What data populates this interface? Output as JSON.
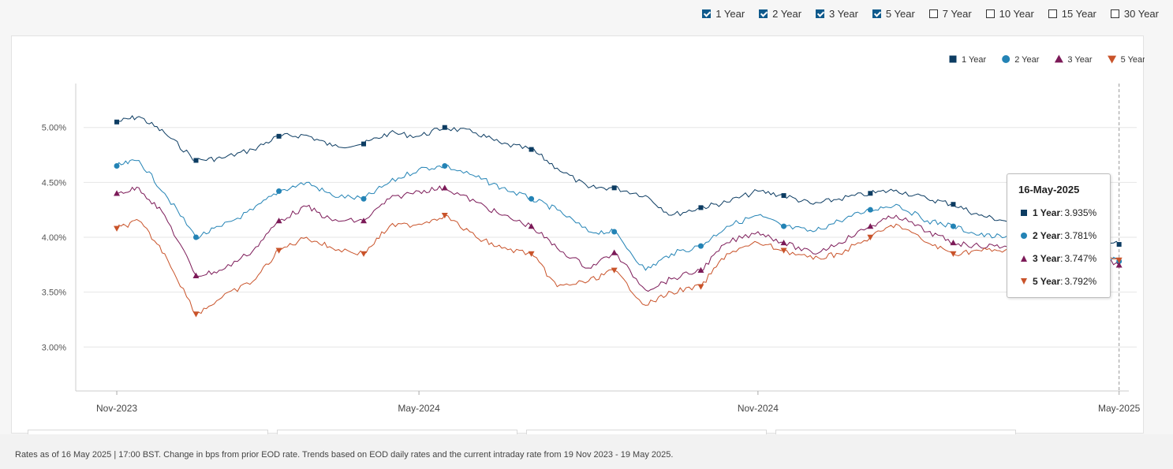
{
  "terms": [
    {
      "label": "1 Year",
      "checked": true
    },
    {
      "label": "2 Year",
      "checked": true
    },
    {
      "label": "3 Year",
      "checked": true
    },
    {
      "label": "5 Year",
      "checked": true
    },
    {
      "label": "7 Year",
      "checked": false
    },
    {
      "label": "10 Year",
      "checked": false
    },
    {
      "label": "15 Year",
      "checked": false
    },
    {
      "label": "30 Year",
      "checked": false
    }
  ],
  "tooltip": {
    "date": "16-May-2025",
    "rows": [
      {
        "name": "1 Year",
        "value": "3.935%"
      },
      {
        "name": "2 Year",
        "value": "3.781%"
      },
      {
        "name": "3 Year",
        "value": "3.747%"
      },
      {
        "name": "5 Year",
        "value": "3.792%"
      }
    ]
  },
  "footnote": "Rates as of 16 May 2025 | 17:00 BST. Change in bps from prior EOD rate. Trends based on EOD daily rates and the current intraday rate from 19 Nov 2023 - 19 May 2025.",
  "chart_data": {
    "type": "line",
    "x_ticks": [
      "Nov-2023",
      "May-2024",
      "Nov-2024",
      "May-2025"
    ],
    "y_ticks": [
      "3.00%",
      "3.50%",
      "4.00%",
      "4.50%",
      "5.00%"
    ],
    "ylim": [
      2.6,
      5.4
    ],
    "grid": true,
    "legend_position": "top-right",
    "x": [
      "2023-11-19",
      "2023-12-01",
      "2023-12-15",
      "2024-01-01",
      "2024-01-15",
      "2024-02-01",
      "2024-02-15",
      "2024-03-01",
      "2024-03-15",
      "2024-04-01",
      "2024-04-15",
      "2024-05-01",
      "2024-05-15",
      "2024-06-01",
      "2024-06-15",
      "2024-07-01",
      "2024-07-15",
      "2024-08-01",
      "2024-08-15",
      "2024-09-01",
      "2024-09-15",
      "2024-10-01",
      "2024-10-15",
      "2024-11-01",
      "2024-11-15",
      "2024-12-01",
      "2024-12-15",
      "2025-01-01",
      "2025-01-15",
      "2025-02-01",
      "2025-02-15",
      "2025-03-01",
      "2025-03-15",
      "2025-04-01",
      "2025-04-15",
      "2025-05-01",
      "2025-05-16"
    ],
    "series": [
      {
        "name": "1 Year",
        "color": "#0c3c62",
        "marker": "square",
        "values": [
          5.05,
          5.1,
          4.95,
          4.7,
          4.72,
          4.8,
          4.92,
          4.93,
          4.83,
          4.85,
          4.95,
          4.92,
          5.0,
          4.95,
          4.85,
          4.8,
          4.63,
          4.45,
          4.45,
          4.38,
          4.2,
          4.27,
          4.32,
          4.42,
          4.38,
          4.3,
          4.35,
          4.4,
          4.43,
          4.35,
          4.3,
          4.2,
          4.15,
          4.12,
          4.1,
          4.0,
          3.935
        ]
      },
      {
        "name": "2 Year",
        "color": "#2383b5",
        "marker": "circle",
        "values": [
          4.65,
          4.7,
          4.4,
          4.0,
          4.1,
          4.25,
          4.42,
          4.5,
          4.38,
          4.35,
          4.5,
          4.62,
          4.65,
          4.55,
          4.45,
          4.35,
          4.25,
          4.05,
          4.05,
          3.7,
          3.85,
          3.92,
          4.1,
          4.2,
          4.1,
          4.05,
          4.15,
          4.25,
          4.3,
          4.15,
          4.1,
          4.02,
          4.0,
          3.98,
          3.95,
          3.88,
          3.781
        ]
      },
      {
        "name": "3 Year",
        "color": "#7c1a58",
        "marker": "triangle",
        "values": [
          4.4,
          4.45,
          4.2,
          3.65,
          3.7,
          3.88,
          4.15,
          4.28,
          4.15,
          4.15,
          4.35,
          4.42,
          4.45,
          4.32,
          4.2,
          4.1,
          3.9,
          3.72,
          3.86,
          3.52,
          3.62,
          3.7,
          3.95,
          4.05,
          3.95,
          3.85,
          3.95,
          4.1,
          4.2,
          4.05,
          3.95,
          3.92,
          3.92,
          3.9,
          3.9,
          3.85,
          3.747
        ]
      },
      {
        "name": "5 Year",
        "color": "#c9532a",
        "marker": "triangle-down",
        "values": [
          4.08,
          4.15,
          3.85,
          3.3,
          3.45,
          3.6,
          3.88,
          4.0,
          3.9,
          3.85,
          4.1,
          4.12,
          4.2,
          4.0,
          3.9,
          3.85,
          3.55,
          3.6,
          3.7,
          3.38,
          3.5,
          3.55,
          3.85,
          3.95,
          3.88,
          3.8,
          3.85,
          4.0,
          4.12,
          3.95,
          3.85,
          3.88,
          3.88,
          3.88,
          3.9,
          3.85,
          3.792
        ]
      }
    ]
  }
}
